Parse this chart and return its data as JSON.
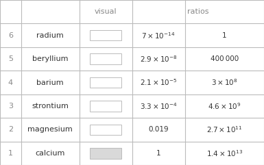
{
  "rows": [
    {
      "num": "6",
      "element": "radium",
      "visual_color": "#ffffff",
      "val": "$7\\times10^{-14}$",
      "ratio": "1"
    },
    {
      "num": "5",
      "element": "beryllium",
      "visual_color": "#ffffff",
      "val": "$2.9\\times10^{-8}$",
      "ratio": "400 000"
    },
    {
      "num": "4",
      "element": "barium",
      "visual_color": "#ffffff",
      "val": "$2.1\\times10^{-5}$",
      "ratio": "$3\\times10^{8}$"
    },
    {
      "num": "3",
      "element": "strontium",
      "visual_color": "#ffffff",
      "val": "$3.3\\times10^{-4}$",
      "ratio": "$4.6\\times10^{9}$"
    },
    {
      "num": "2",
      "element": "magnesium",
      "visual_color": "#ffffff",
      "val": "0.019",
      "ratio": "$2.7\\times10^{11}$"
    },
    {
      "num": "1",
      "element": "calcium",
      "visual_color": "#d9d9d9",
      "val": "1",
      "ratio": "$1.4\\times10^{13}$"
    }
  ],
  "col_headers": [
    "",
    "",
    "visual",
    "ratios",
    ""
  ],
  "bg_color": "#ffffff",
  "border_color": "#bbbbbb",
  "text_color": "#888888",
  "element_color": "#333333",
  "value_color": "#333333",
  "header_color": "#888888",
  "fig_width": 3.85,
  "fig_height": 2.41
}
